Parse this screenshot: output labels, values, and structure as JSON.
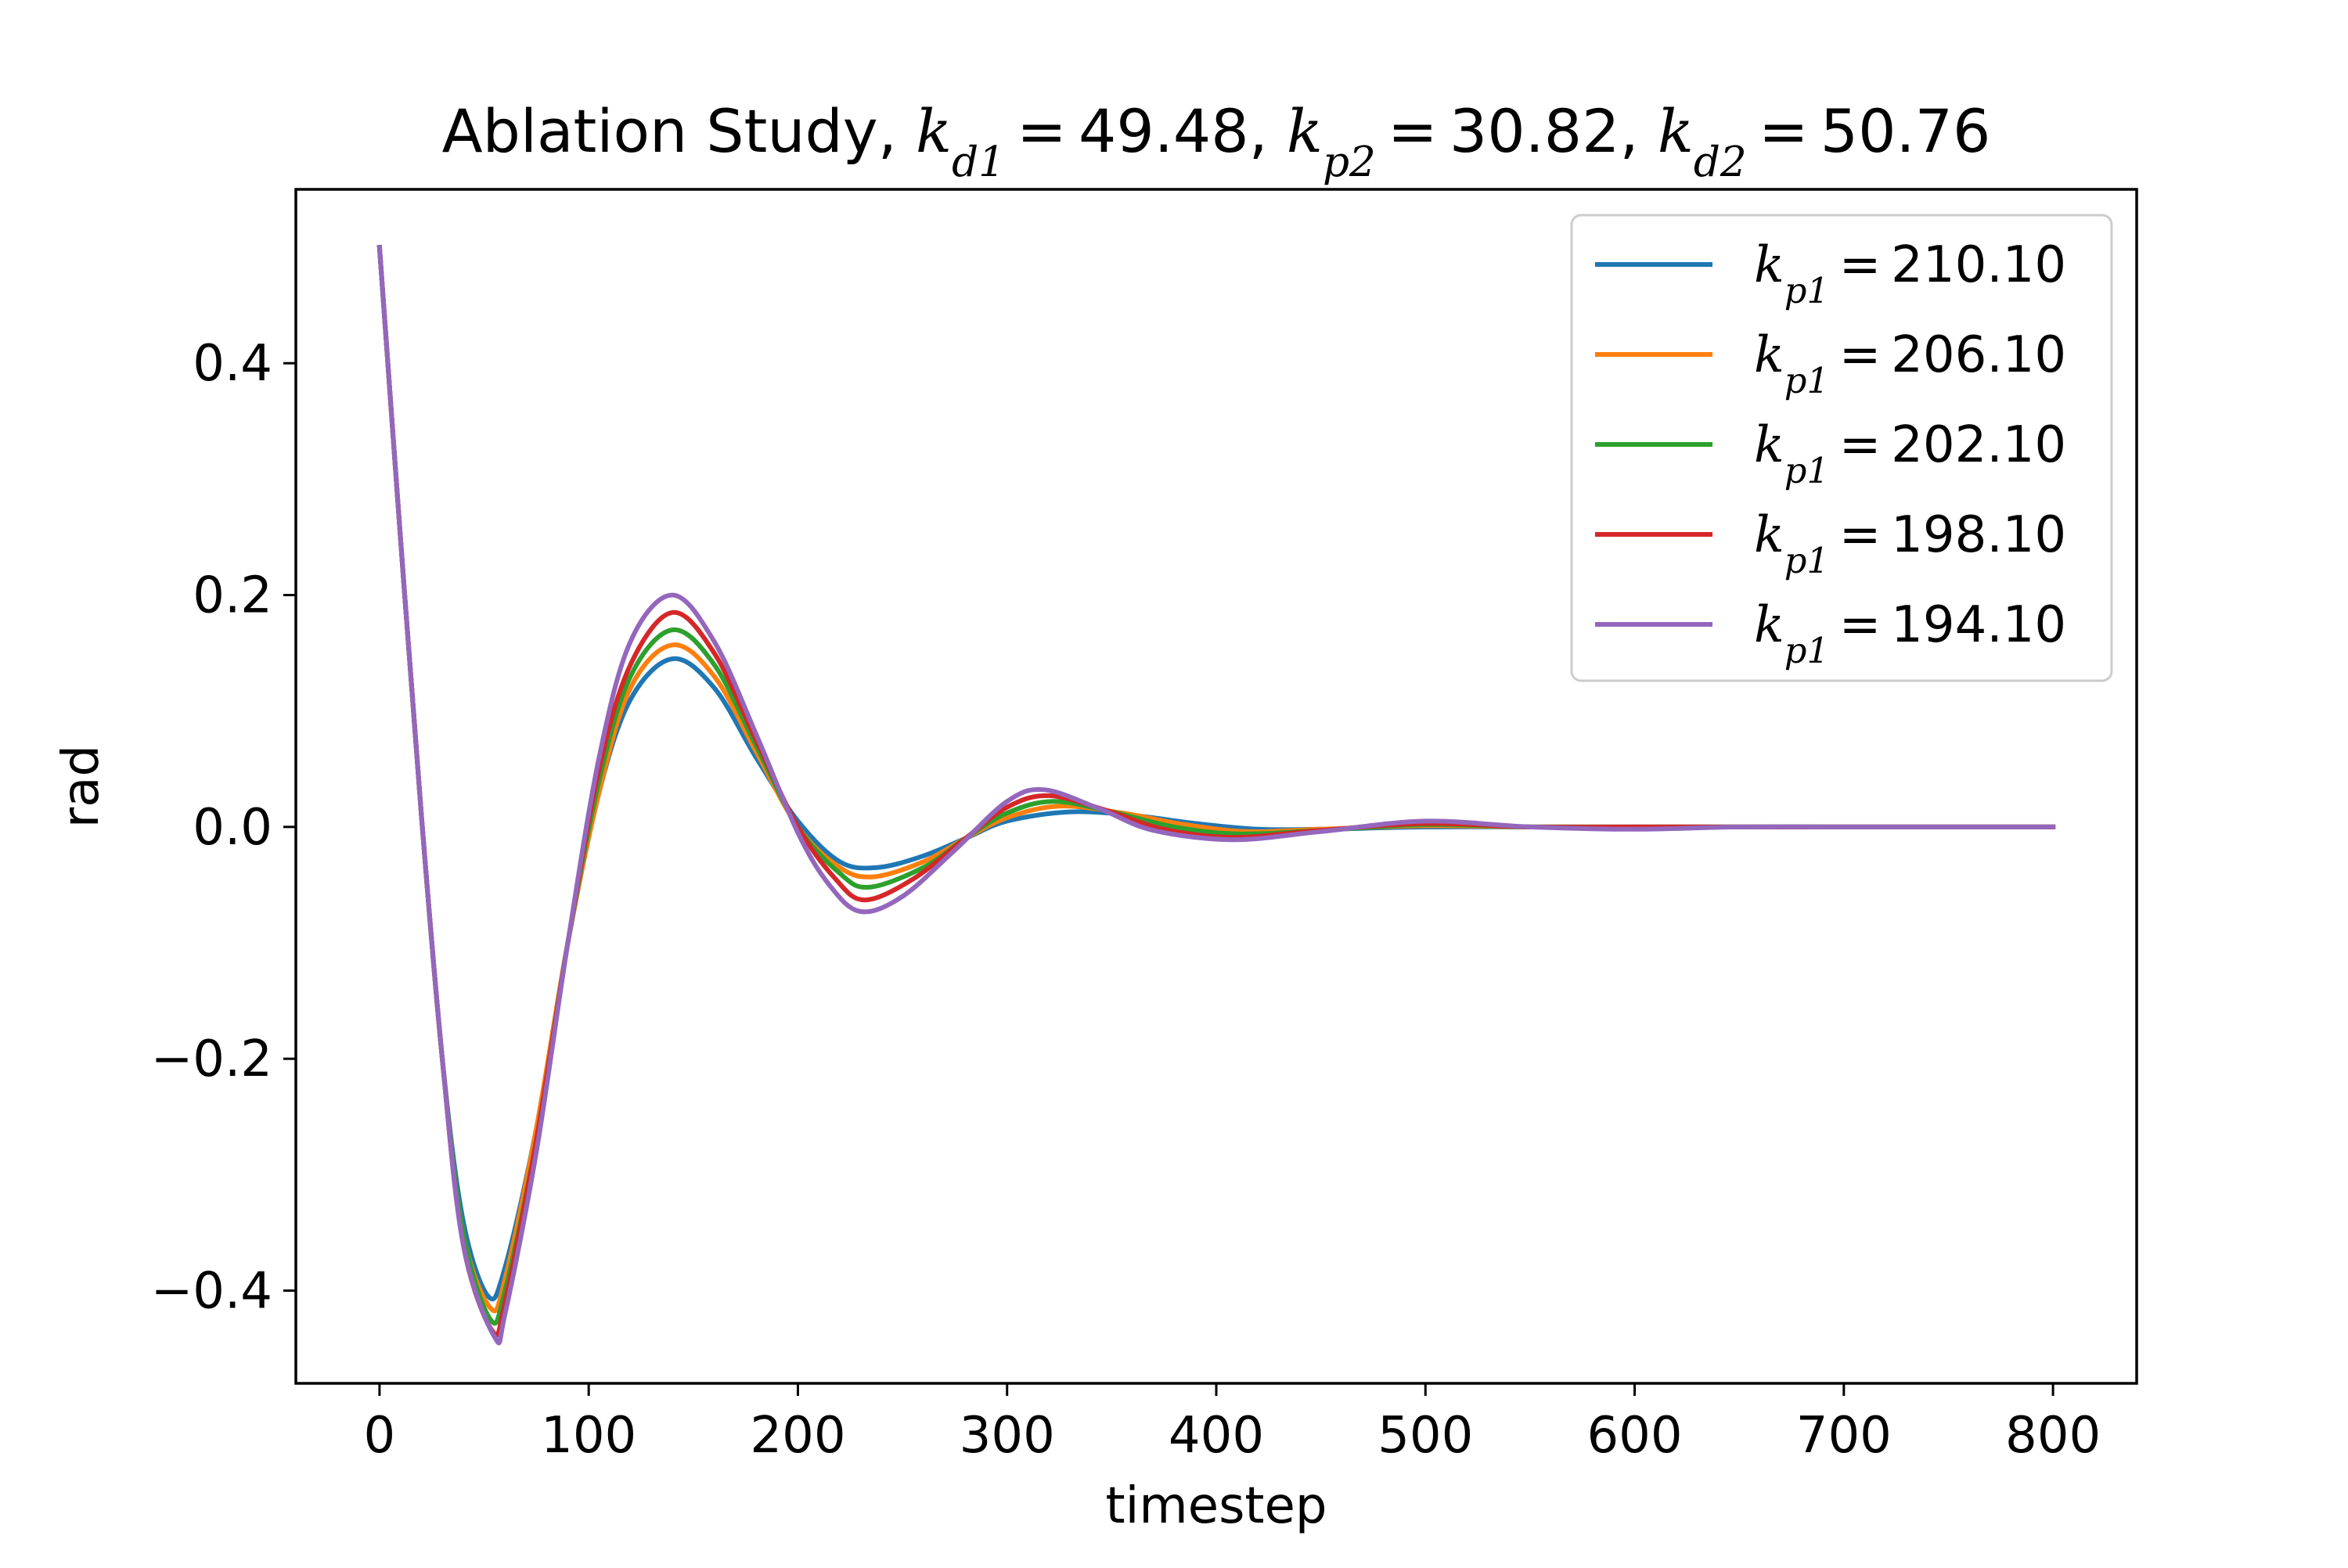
{
  "chart_data": {
    "type": "line",
    "title": {
      "prefix": "Ablation Study, ",
      "params": [
        {
          "symbol": "k",
          "sub": "d1",
          "value": "49.48"
        },
        {
          "symbol": "k",
          "sub": "p2",
          "value": "30.82"
        },
        {
          "symbol": "k",
          "sub": "d2",
          "value": "50.76"
        }
      ]
    },
    "xlabel": "timestep",
    "ylabel": "rad",
    "xlim": [
      -40,
      840
    ],
    "ylim": [
      -0.48,
      0.55
    ],
    "xticks": [
      0,
      100,
      200,
      300,
      400,
      500,
      600,
      700,
      800
    ],
    "yticks": [
      -0.4,
      -0.2,
      0.0,
      0.2,
      0.4
    ],
    "ytick_labels": [
      "−0.4",
      "−0.2",
      "0.0",
      "0.2",
      "0.4"
    ],
    "grid": false,
    "legend_placement": "top-right",
    "series": [
      {
        "name": {
          "symbol": "k",
          "sub": "p1",
          "value": "210.10"
        },
        "color": "#1f77b4",
        "x": [
          0,
          10,
          20,
          30,
          40,
          52,
          60,
          75,
          90,
          105,
          120,
          140,
          160,
          180,
          200,
          220,
          238,
          260,
          280,
          300,
          330,
          360,
          390,
          420,
          450,
          500,
          550,
          600,
          650,
          700,
          750,
          800
        ],
        "y": [
          0.5,
          0.25,
          0.01,
          -0.2,
          -0.34,
          -0.405,
          -0.38,
          -0.26,
          -0.1,
          0.03,
          0.11,
          0.145,
          0.12,
          0.06,
          0.005,
          -0.03,
          -0.035,
          -0.025,
          -0.01,
          0.005,
          0.013,
          0.01,
          0.003,
          -0.002,
          -0.002,
          0.0,
          0.0,
          0.0,
          0.0,
          0.0,
          0.0,
          0.0
        ]
      },
      {
        "name": {
          "symbol": "k",
          "sub": "p1",
          "value": "206.10"
        },
        "color": "#ff7f0e",
        "x": [
          0,
          10,
          20,
          30,
          40,
          53,
          60,
          75,
          90,
          105,
          120,
          140,
          160,
          180,
          200,
          220,
          236,
          260,
          280,
          300,
          325,
          355,
          385,
          415,
          450,
          500,
          550,
          600,
          650,
          700,
          750,
          800
        ],
        "y": [
          0.5,
          0.25,
          0.01,
          -0.2,
          -0.35,
          -0.415,
          -0.39,
          -0.26,
          -0.1,
          0.03,
          0.12,
          0.157,
          0.13,
          0.065,
          0.0,
          -0.035,
          -0.043,
          -0.03,
          -0.01,
          0.008,
          0.018,
          0.012,
          0.002,
          -0.004,
          -0.002,
          0.001,
          0.0,
          0.0,
          0.0,
          0.0,
          0.0,
          0.0
        ]
      },
      {
        "name": {
          "symbol": "k",
          "sub": "p1",
          "value": "202.10"
        },
        "color": "#2ca02c",
        "x": [
          0,
          10,
          20,
          30,
          40,
          53,
          60,
          75,
          90,
          105,
          120,
          140,
          160,
          180,
          200,
          220,
          234,
          260,
          280,
          300,
          322,
          350,
          380,
          410,
          450,
          500,
          550,
          600,
          650,
          700,
          750,
          800
        ],
        "y": [
          0.5,
          0.25,
          0.01,
          -0.2,
          -0.35,
          -0.425,
          -0.4,
          -0.27,
          -0.1,
          0.04,
          0.13,
          0.17,
          0.14,
          0.07,
          0.0,
          -0.04,
          -0.052,
          -0.035,
          -0.01,
          0.012,
          0.022,
          0.013,
          0.0,
          -0.006,
          -0.003,
          0.002,
          0.0,
          0.0,
          0.0,
          0.0,
          0.0,
          0.0
        ]
      },
      {
        "name": {
          "symbol": "k",
          "sub": "p1",
          "value": "198.10"
        },
        "color": "#d62728",
        "x": [
          0,
          10,
          20,
          30,
          40,
          54,
          60,
          75,
          90,
          105,
          120,
          140,
          160,
          180,
          200,
          218,
          232,
          255,
          280,
          300,
          320,
          348,
          375,
          408,
          450,
          500,
          550,
          600,
          650,
          700,
          750,
          800
        ],
        "y": [
          0.5,
          0.25,
          0.01,
          -0.2,
          -0.36,
          -0.435,
          -0.41,
          -0.27,
          -0.1,
          0.05,
          0.14,
          0.185,
          0.15,
          0.075,
          0.0,
          -0.045,
          -0.063,
          -0.045,
          -0.01,
          0.017,
          0.027,
          0.014,
          -0.002,
          -0.009,
          -0.003,
          0.003,
          0.0,
          0.0,
          0.0,
          0.0,
          0.0,
          0.0
        ]
      },
      {
        "name": {
          "symbol": "k",
          "sub": "p1",
          "value": "194.10"
        },
        "color": "#9467bd",
        "x": [
          0,
          10,
          20,
          30,
          40,
          55,
          60,
          75,
          90,
          105,
          120,
          140,
          160,
          180,
          200,
          215,
          230,
          250,
          275,
          300,
          318,
          345,
          370,
          408,
          450,
          500,
          550,
          600,
          650,
          700,
          750,
          800
        ],
        "y": [
          0.5,
          0.25,
          0.01,
          -0.2,
          -0.36,
          -0.44,
          -0.42,
          -0.28,
          -0.1,
          0.06,
          0.16,
          0.2,
          0.16,
          0.08,
          -0.005,
          -0.05,
          -0.073,
          -0.06,
          -0.02,
          0.022,
          0.032,
          0.015,
          -0.003,
          -0.011,
          -0.004,
          0.005,
          0.0,
          -0.002,
          0.0,
          0.0,
          0.0,
          0.0
        ]
      }
    ]
  }
}
